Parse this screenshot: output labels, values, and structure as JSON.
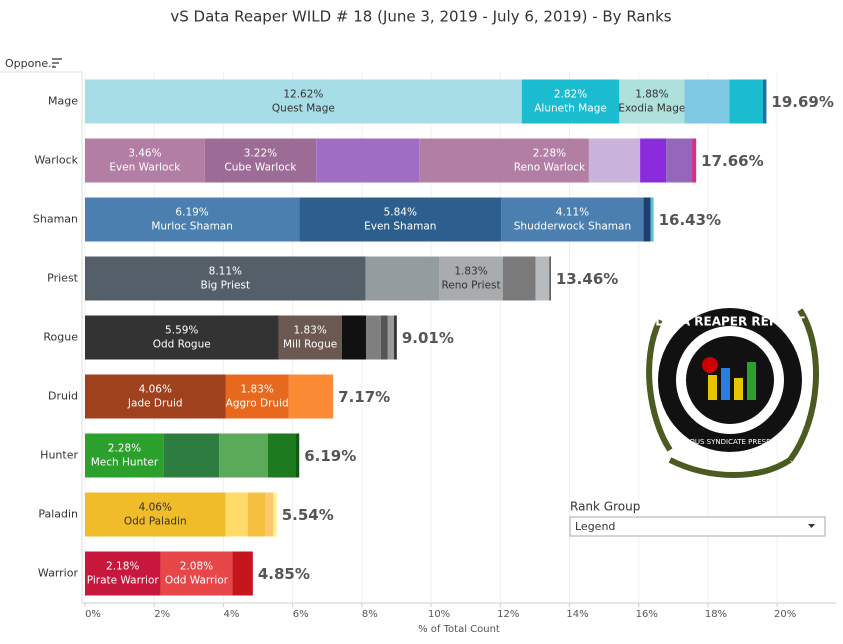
{
  "chart_data": {
    "type": "stacked_bar",
    "title": "vS Data Reaper WILD # 18 (June 3, 2019 - July 6, 2019) - By Ranks",
    "header": "Oppone..",
    "xlabel": "% of Total Count",
    "xlim": [
      0,
      21.7
    ],
    "xticks": [
      {
        "value": 0,
        "label": "0%"
      },
      {
        "value": 2,
        "label": "2%"
      },
      {
        "value": 4,
        "label": "4%"
      },
      {
        "value": 6,
        "label": "6%"
      },
      {
        "value": 8,
        "label": "8%"
      },
      {
        "value": 10,
        "label": "10%"
      },
      {
        "value": 12,
        "label": "12%"
      },
      {
        "value": 14,
        "label": "14%"
      },
      {
        "value": 16,
        "label": "16%"
      },
      {
        "value": 18,
        "label": "18%"
      },
      {
        "value": 20,
        "label": "20%"
      }
    ],
    "grid": true,
    "bars": [
      {
        "category": "Mage",
        "values": [
          12.62,
          2.82,
          1.88,
          1.3,
          0.97,
          0.1
        ],
        "value_labels": [
          "12.62%",
          "2.82%",
          "1.88%",
          null,
          null,
          null
        ],
        "names": [
          "Quest Mage",
          "Aluneth Mage",
          "Exodia Mage",
          null,
          null,
          null
        ],
        "colors": [
          "#a6dde6",
          "#1bbccf",
          "#aee0dc",
          "#7ec8e3",
          "#1bbccf",
          "#1a6fa8"
        ],
        "total": 19.69,
        "total_label": "19.69%"
      },
      {
        "category": "Warlock",
        "values": [
          3.46,
          3.22,
          2.98,
          2.62,
          2.28,
          1.48,
          0.75,
          0.75,
          0.12
        ],
        "value_labels": [
          "3.46%",
          "3.22%",
          null,
          null,
          "2.28%",
          null,
          null,
          null,
          null
        ],
        "names": [
          "Even Warlock",
          "Cube Warlock",
          null,
          null,
          "Reno Warlock",
          null,
          null,
          null,
          null
        ],
        "colors": [
          "#b27ea3",
          "#9c6b96",
          "#9f6dc4",
          "#b27ea3",
          "#b27ea3",
          "#cab3da",
          "#8a2bdc",
          "#9467bd",
          "#d62f8a"
        ],
        "total": 17.66,
        "total_label": "17.66%"
      },
      {
        "category": "Shaman",
        "values": [
          6.19,
          5.84,
          4.11,
          0.2,
          0.09
        ],
        "value_labels": [
          "6.19%",
          "5.84%",
          "4.11%",
          null,
          null
        ],
        "names": [
          "Murloc Shaman",
          "Even Shaman",
          "Shudderwock Shaman",
          null,
          null
        ],
        "colors": [
          "#4a7fb0",
          "#2d5f8e",
          "#4a7fb0",
          "#1f3f6e",
          "#5bc0de"
        ],
        "total": 16.43,
        "total_label": "16.43%"
      },
      {
        "category": "Priest",
        "values": [
          8.11,
          2.13,
          1.83,
          0.95,
          0.4,
          0.04
        ],
        "value_labels": [
          "8.11%",
          null,
          "1.83%",
          null,
          null,
          null
        ],
        "names": [
          "Big Priest",
          null,
          "Reno Priest",
          null,
          null,
          null
        ],
        "colors": [
          "#555f69",
          "#959ca0",
          "#a8acae",
          "#7a7a7a",
          "#b8bbbd",
          "#444444"
        ],
        "total": 13.46,
        "total_label": "13.46%"
      },
      {
        "category": "Rogue",
        "values": [
          5.59,
          1.83,
          0.7,
          0.43,
          0.2,
          0.18,
          0.08
        ],
        "value_labels": [
          "5.59%",
          "1.83%",
          null,
          null,
          null,
          null,
          null
        ],
        "names": [
          "Odd Rogue",
          "Mill Rogue",
          null,
          null,
          null,
          null,
          null
        ],
        "colors": [
          "#333333",
          "#6b5850",
          "#111111",
          "#7f7f7f",
          "#555555",
          "#999999",
          "#333333"
        ],
        "total": 9.01,
        "total_label": "9.01%"
      },
      {
        "category": "Druid",
        "values": [
          4.06,
          1.83,
          1.28
        ],
        "value_labels": [
          "4.06%",
          "1.83%",
          null
        ],
        "names": [
          "Jade Druid",
          "Aggro Druid",
          null
        ],
        "colors": [
          "#a0411e",
          "#e8691e",
          "#fb8b34"
        ],
        "total": 7.17,
        "total_label": "7.17%"
      },
      {
        "category": "Hunter",
        "values": [
          2.28,
          1.6,
          1.4,
          0.8,
          0.11
        ],
        "value_labels": [
          "2.28%",
          null,
          null,
          null,
          null
        ],
        "names": [
          "Mech Hunter",
          null,
          null,
          null,
          null
        ],
        "colors": [
          "#2ca02c",
          "#2e7d40",
          "#5aaa5a",
          "#1e7a1e",
          "#145a14"
        ],
        "total": 6.19,
        "total_label": "6.19%"
      },
      {
        "category": "Paladin",
        "values": [
          4.06,
          0.64,
          0.52,
          0.22,
          0.1
        ],
        "value_labels": [
          "4.06%",
          null,
          null,
          null,
          null
        ],
        "names": [
          "Odd Paladin",
          null,
          null,
          null,
          null
        ],
        "colors": [
          "#f0bc2a",
          "#ffdc6a",
          "#f5c040",
          "#ffc870",
          "#fff48a"
        ],
        "total": 5.54,
        "total_label": "5.54%"
      },
      {
        "category": "Warrior",
        "values": [
          2.18,
          2.08,
          0.59
        ],
        "value_labels": [
          "2.18%",
          "2.08%",
          null
        ],
        "names": [
          "Pirate Warrior",
          "Odd Warrior",
          null
        ],
        "colors": [
          "#c8173c",
          "#e8474a",
          "#c4161c"
        ],
        "total": 4.85,
        "total_label": "4.85%"
      }
    ]
  },
  "legend": {
    "title": "Rank Group",
    "value": "Legend"
  },
  "logo": {
    "title": "DATA REAPER REPORT",
    "subtitle": "VICIOUS SYNDICATE PRESENTS"
  }
}
